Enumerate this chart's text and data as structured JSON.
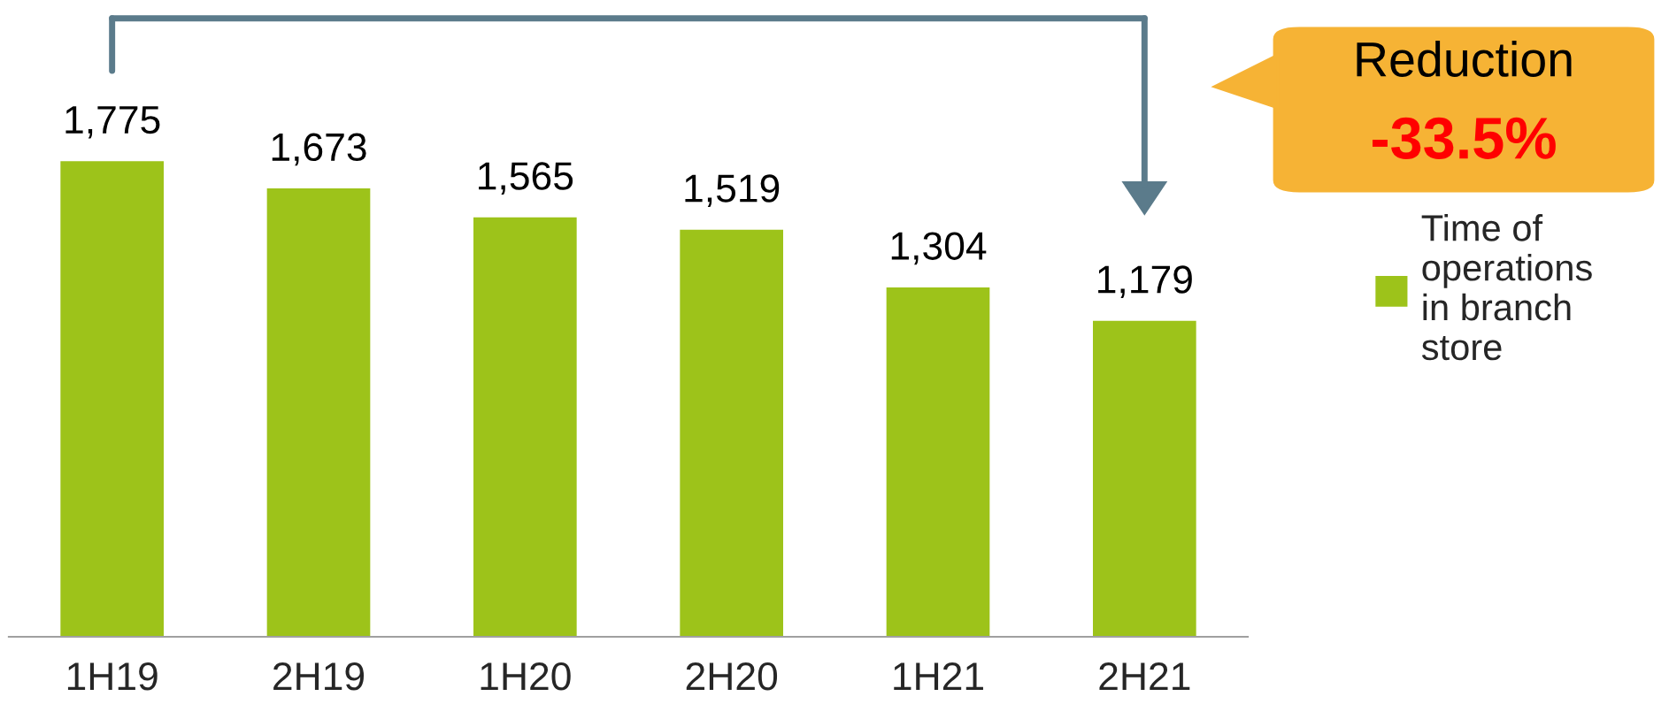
{
  "chart_data": {
    "type": "bar",
    "categories": [
      "1H19",
      "2H19",
      "1H20",
      "2H20",
      "1H21",
      "2H21"
    ],
    "series": [
      {
        "name": "Time of operations in branch store",
        "color": "#9dc31a",
        "values": [
          1775,
          1673,
          1565,
          1519,
          1304,
          1179
        ],
        "value_labels": [
          "1,775",
          "1,673",
          "1,565",
          "1,519",
          "1,304",
          "1,179"
        ]
      }
    ],
    "annotations": [
      "Reduction",
      "-33.5%"
    ],
    "tick_labels": "x",
    "grid": false,
    "legend": "right"
  }
}
